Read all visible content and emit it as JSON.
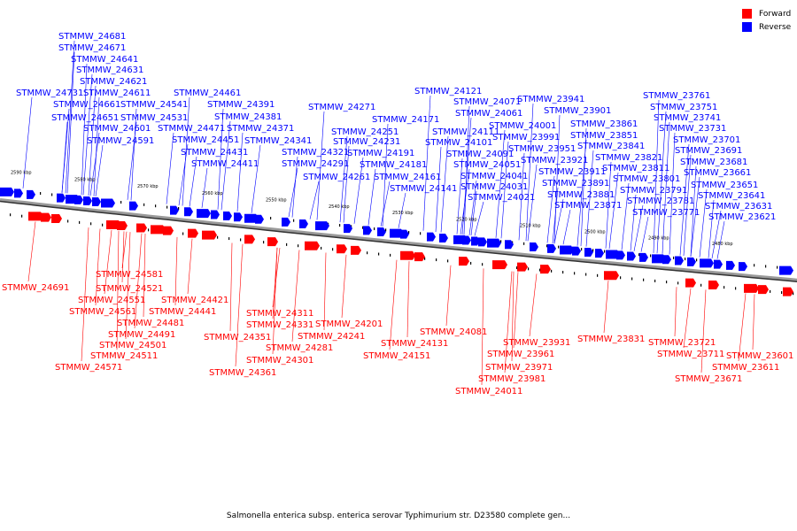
{
  "legend": {
    "forward_label": "Forward",
    "reverse_label": "Reverse",
    "forward_color": "#ff0000",
    "reverse_color": "#0000ff"
  },
  "caption": "Salmonella enterica subsp. enterica serovar Typhimurium str. D23580 complete gen...",
  "ticks": [
    "2590 kbp",
    "2580 kbp",
    "2570 kbp",
    "2560 kbp",
    "2550 kbp",
    "2540 kbp",
    "2530 kbp",
    "2520 kbp",
    "2510 kbp",
    "2500 kbp",
    "2490 kbp",
    "2480 kbp"
  ],
  "reverse_genes": [
    "STMMW_24681",
    "STMMW_24671",
    "STMMW_24641",
    "STMMW_24631",
    "STMMW_24621",
    "STMMW_24611",
    "STMMW_24731",
    "STMMW_24661",
    "STMMW_24651",
    "STMMW_24601",
    "STMMW_24591",
    "STMMW_24541",
    "STMMW_24531",
    "STMMW_24461",
    "STMMW_24391",
    "STMMW_24381",
    "STMMW_24471",
    "STMMW_24371",
    "STMMW_24451",
    "STMMW_24431",
    "STMMW_24411",
    "STMMW_24341",
    "STMMW_24271",
    "STMMW_24321",
    "STMMW_24291",
    "STMMW_24251",
    "STMMW_24231",
    "STMMW_24261",
    "STMMW_24121",
    "STMMW_24171",
    "STMMW_24191",
    "STMMW_24181",
    "STMMW_24071",
    "STMMW_24061",
    "STMMW_24111",
    "STMMW_24101",
    "STMMW_24161",
    "STMMW_24141",
    "STMMW_24091",
    "STMMW_24051",
    "STMMW_24041",
    "STMMW_24031",
    "STMMW_24021",
    "STMMW_23941",
    "STMMW_23901",
    "STMMW_24001",
    "STMMW_23991",
    "STMMW_23951",
    "STMMW_23921",
    "STMMW_23911",
    "STMMW_23891",
    "STMMW_23881",
    "STMMW_23871",
    "STMMW_23861",
    "STMMW_23851",
    "STMMW_23841",
    "STMMW_23821",
    "STMMW_23811",
    "STMMW_23801",
    "STMMW_23791",
    "STMMW_23781",
    "STMMW_23771",
    "STMMW_23761",
    "STMMW_23751",
    "STMMW_23741",
    "STMMW_23731",
    "STMMW_23701",
    "STMMW_23691",
    "STMMW_23681",
    "STMMW_23661",
    "STMMW_23651",
    "STMMW_23641",
    "STMMW_23631",
    "STMMW_23621"
  ],
  "forward_genes": [
    "STMMW_24691",
    "STMMW_24581",
    "STMMW_24521",
    "STMMW_24551",
    "STMMW_24561",
    "STMMW_24481",
    "STMMW_24491",
    "STMMW_24501",
    "STMMW_24511",
    "STMMW_24571",
    "STMMW_24421",
    "STMMW_24441",
    "STMMW_24311",
    "STMMW_24331",
    "STMMW_24351",
    "STMMW_24361",
    "STMMW_24201",
    "STMMW_24241",
    "STMMW_24281",
    "STMMW_24301",
    "STMMW_24131",
    "STMMW_24151",
    "STMMW_24081",
    "STMMW_24011",
    "STMMW_23931",
    "STMMW_23961",
    "STMMW_23971",
    "STMMW_23981",
    "STMMW_23831",
    "STMMW_23721",
    "STMMW_23711",
    "STMMW_23671",
    "STMMW_23601",
    "STMMW_23611"
  ]
}
